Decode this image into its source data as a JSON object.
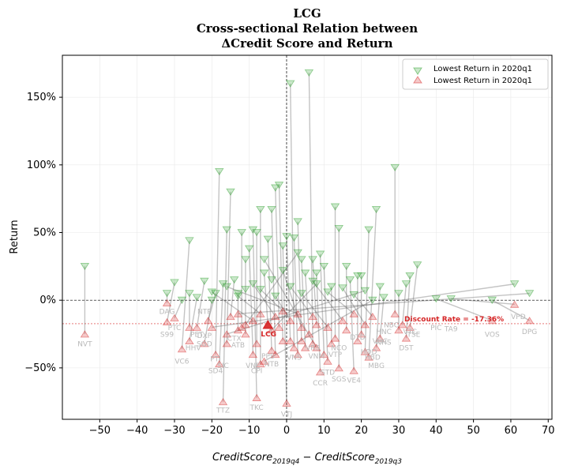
{
  "chart_data": {
    "type": "scatter",
    "title": [
      "LCG",
      "Cross-sectional Relation between",
      "ΔCredit Score and Return"
    ],
    "xlabel": "CreditScore",
    "xlabel_parts": {
      "a": "CreditScore",
      "a_sub": "2019q4",
      "minus": " − ",
      "b": "CreditScore",
      "b_sub": "2019q3"
    },
    "ylabel": "Return",
    "xlim": [
      -60,
      71
    ],
    "ylim": [
      -0.88,
      1.81
    ],
    "xticks": [
      -50,
      -40,
      -30,
      -20,
      -10,
      0,
      10,
      20,
      30,
      40,
      50,
      60,
      70
    ],
    "xtick_labels": [
      "−50",
      "−40",
      "−30",
      "−20",
      "−10",
      "0",
      "10",
      "20",
      "30",
      "40",
      "50",
      "60",
      "70"
    ],
    "yticks": [
      -0.5,
      0,
      0.5,
      1.0,
      1.5
    ],
    "ytick_labels": [
      "−50%",
      "0%",
      "50%",
      "100%",
      "150%"
    ],
    "grid": true,
    "legend": {
      "placement": "top-right",
      "entries": [
        "Lowest Return in 2020q1",
        "Lowest Return in 2020q1"
      ]
    },
    "reference_lines": {
      "y_zero": 0,
      "x_zero": 0,
      "discount_rate": -0.1736
    },
    "discount_label": "Discount Rate = -17.36%",
    "highlight": {
      "name": "LCG",
      "x": -5,
      "y": -0.18,
      "color": "#d62728"
    },
    "colors": {
      "high": "#2ca02c",
      "low": "#d62728",
      "line": "#555555",
      "label": "#b9b9b9"
    },
    "series": [
      {
        "name": "high",
        "points": [
          [
            -54,
            0.25
          ],
          [
            -32,
            0.05
          ],
          [
            -30,
            0.13
          ],
          [
            -28,
            0.0
          ],
          [
            -26,
            0.44
          ],
          [
            -26,
            0.05
          ],
          [
            -24,
            0.02
          ],
          [
            -22,
            0.14
          ],
          [
            -20,
            0.0
          ],
          [
            -19,
            0.05
          ],
          [
            -18,
            0.95
          ],
          [
            -17,
            0.12
          ],
          [
            -16,
            0.52
          ],
          [
            -15,
            0.8
          ],
          [
            -14,
            0.15
          ],
          [
            -13,
            0.05
          ],
          [
            -12,
            0.5
          ],
          [
            -11,
            0.3
          ],
          [
            -10,
            0.38
          ],
          [
            -9,
            0.52
          ],
          [
            -8,
            0.5
          ],
          [
            -7,
            0.67
          ],
          [
            -6,
            0.2
          ],
          [
            -5,
            0.45
          ],
          [
            -4,
            0.67
          ],
          [
            -3,
            0.83
          ],
          [
            -2,
            0.85
          ],
          [
            -1,
            0.4
          ],
          [
            0,
            0.47
          ],
          [
            1,
            1.6
          ],
          [
            2,
            0.46
          ],
          [
            3,
            0.58
          ],
          [
            4,
            0.3
          ],
          [
            5,
            0.2
          ],
          [
            6,
            1.68
          ],
          [
            7,
            0.3
          ],
          [
            8,
            0.2
          ],
          [
            9,
            0.34
          ],
          [
            10,
            0.25
          ],
          [
            12,
            0.1
          ],
          [
            13,
            0.69
          ],
          [
            14,
            0.53
          ],
          [
            16,
            0.25
          ],
          [
            17,
            0.15
          ],
          [
            19,
            0.18
          ],
          [
            20,
            0.18
          ],
          [
            22,
            0.52
          ],
          [
            24,
            0.67
          ],
          [
            25,
            0.1
          ],
          [
            26,
            0.02
          ],
          [
            29,
            0.98
          ],
          [
            30,
            0.05
          ],
          [
            32,
            0.12
          ],
          [
            33,
            0.18
          ],
          [
            35,
            0.26
          ],
          [
            40,
            0.01
          ],
          [
            44,
            0.01
          ],
          [
            55,
            0.0
          ],
          [
            61,
            0.12
          ],
          [
            65,
            0.05
          ],
          [
            -20,
            0.06
          ],
          [
            -13,
            0.03
          ],
          [
            -9,
            0.12
          ],
          [
            -7,
            0.08
          ],
          [
            -3,
            0.03
          ],
          [
            -1,
            0.22
          ],
          [
            1,
            0.1
          ],
          [
            4,
            0.05
          ],
          [
            7,
            0.14
          ],
          [
            11,
            0.06
          ],
          [
            15,
            0.09
          ],
          [
            18,
            0.04
          ],
          [
            21,
            0.07
          ],
          [
            23,
            0.0
          ],
          [
            -16,
            0.1
          ],
          [
            -6,
            0.3
          ],
          [
            3,
            0.35
          ],
          [
            8,
            0.12
          ],
          [
            -11,
            0.08
          ],
          [
            -4,
            0.15
          ]
        ]
      },
      {
        "name": "low",
        "points": [
          [
            -54,
            -0.25
          ],
          [
            -32,
            -0.02
          ],
          [
            -32,
            -0.16
          ],
          [
            -30,
            -0.13
          ],
          [
            -28,
            -0.36
          ],
          [
            -26,
            -0.2
          ],
          [
            -26,
            -0.3
          ],
          [
            -24,
            -0.2
          ],
          [
            -22,
            -0.32
          ],
          [
            -21,
            -0.15
          ],
          [
            -19,
            -0.4
          ],
          [
            -18,
            -0.47
          ],
          [
            -17,
            -0.75
          ],
          [
            -16,
            -0.32
          ],
          [
            -15,
            -0.12
          ],
          [
            -13,
            -0.22
          ],
          [
            -12,
            -0.2
          ],
          [
            -11,
            -0.25
          ],
          [
            -9,
            -0.4
          ],
          [
            -8,
            -0.72
          ],
          [
            -8,
            -0.32
          ],
          [
            -7,
            -0.47
          ],
          [
            -5,
            -0.18
          ],
          [
            -4,
            -0.37
          ],
          [
            -3,
            -0.4
          ],
          [
            -2,
            -0.2
          ],
          [
            -1,
            -0.3
          ],
          [
            0,
            -0.76
          ],
          [
            1,
            -0.3
          ],
          [
            2,
            -0.35
          ],
          [
            3,
            -0.4
          ],
          [
            4,
            -0.3
          ],
          [
            5,
            -0.35
          ],
          [
            6,
            -0.25
          ],
          [
            7,
            -0.32
          ],
          [
            8,
            -0.18
          ],
          [
            9,
            -0.53
          ],
          [
            10,
            -0.4
          ],
          [
            11,
            -0.45
          ],
          [
            12,
            -0.32
          ],
          [
            13,
            -0.28
          ],
          [
            14,
            -0.5
          ],
          [
            16,
            -0.22
          ],
          [
            18,
            -0.52
          ],
          [
            19,
            -0.3
          ],
          [
            20,
            -0.25
          ],
          [
            21,
            -0.38
          ],
          [
            22,
            -0.42
          ],
          [
            24,
            -0.35
          ],
          [
            25,
            -0.28
          ],
          [
            29,
            -0.1
          ],
          [
            30,
            -0.22
          ],
          [
            31,
            -0.18
          ],
          [
            32,
            -0.28
          ],
          [
            33,
            -0.2
          ],
          [
            55,
            -0.15
          ],
          [
            61,
            -0.03
          ],
          [
            65,
            -0.15
          ],
          [
            -20,
            -0.2
          ],
          [
            -13,
            -0.1
          ],
          [
            -9,
            -0.15
          ],
          [
            -7,
            -0.1
          ],
          [
            -3,
            -0.12
          ],
          [
            -1,
            -0.08
          ],
          [
            1,
            -0.15
          ],
          [
            4,
            -0.2
          ],
          [
            7,
            -0.12
          ],
          [
            11,
            -0.2
          ],
          [
            15,
            -0.15
          ],
          [
            18,
            -0.1
          ],
          [
            21,
            -0.18
          ],
          [
            23,
            -0.12
          ],
          [
            -16,
            -0.25
          ],
          [
            -6,
            -0.45
          ],
          [
            3,
            -0.1
          ],
          [
            8,
            -0.35
          ],
          [
            -11,
            -0.18
          ],
          [
            -4,
            -0.22
          ]
        ]
      }
    ],
    "tickers": [
      {
        "t": "NVT",
        "x": -54,
        "y": -0.34
      },
      {
        "t": "DAG",
        "x": -32,
        "y": -0.1
      },
      {
        "t": "S99",
        "x": -32,
        "y": -0.27
      },
      {
        "t": "PTC",
        "x": -30,
        "y": -0.22
      },
      {
        "t": "VC6",
        "x": -28,
        "y": -0.47
      },
      {
        "t": "HHV",
        "x": -25,
        "y": -0.37
      },
      {
        "t": "SGD",
        "x": -22,
        "y": -0.34
      },
      {
        "t": "PET",
        "x": -24,
        "y": -0.27
      },
      {
        "t": "NTP",
        "x": -22,
        "y": -0.1
      },
      {
        "t": "DXP",
        "x": -22,
        "y": -0.28
      },
      {
        "t": "PTI",
        "x": -19,
        "y": -0.45
      },
      {
        "t": "SD4",
        "x": -19,
        "y": -0.54
      },
      {
        "t": "SIC",
        "x": -17,
        "y": -0.5
      },
      {
        "t": "TTZ",
        "x": -17,
        "y": -0.83
      },
      {
        "t": "ATB",
        "x": -13,
        "y": -0.35
      },
      {
        "t": "CTX",
        "x": -14,
        "y": -0.3
      },
      {
        "t": "TKC",
        "x": -8,
        "y": -0.81
      },
      {
        "t": "VNE",
        "x": -9,
        "y": -0.5
      },
      {
        "t": "CPI",
        "x": -8,
        "y": -0.54
      },
      {
        "t": "NTB",
        "x": -4,
        "y": -0.49
      },
      {
        "t": "PPS",
        "x": -5,
        "y": -0.43
      },
      {
        "t": "VTJ",
        "x": 0,
        "y": -0.86
      },
      {
        "t": "CCR",
        "x": 9,
        "y": -0.63
      },
      {
        "t": "SGS",
        "x": 14,
        "y": -0.6
      },
      {
        "t": "VE4",
        "x": 18,
        "y": -0.61
      },
      {
        "t": "MBG",
        "x": 24,
        "y": -0.5
      },
      {
        "t": "STD",
        "x": 11,
        "y": -0.55
      },
      {
        "t": "VNM",
        "x": 8,
        "y": -0.43
      },
      {
        "t": "DTD",
        "x": 19,
        "y": -0.29
      },
      {
        "t": "HBD",
        "x": 23,
        "y": -0.44
      },
      {
        "t": "VRS",
        "x": 7,
        "y": -0.37
      },
      {
        "t": "NCO",
        "x": 14,
        "y": -0.37
      },
      {
        "t": "VHC",
        "x": 25,
        "y": -0.32
      },
      {
        "t": "DST",
        "x": 32,
        "y": -0.37
      },
      {
        "t": "PIC",
        "x": 40,
        "y": -0.22
      },
      {
        "t": "TA9",
        "x": 44,
        "y": -0.23
      },
      {
        "t": "VOS",
        "x": 55,
        "y": -0.27
      },
      {
        "t": "DPG",
        "x": 65,
        "y": -0.25
      },
      {
        "t": "VNS",
        "x": 2,
        "y": -0.44
      },
      {
        "t": "TSE",
        "x": 34,
        "y": -0.27
      },
      {
        "t": "NBC",
        "x": 28,
        "y": -0.2
      },
      {
        "t": "VTC",
        "x": 33,
        "y": -0.25
      },
      {
        "t": "HNC",
        "x": 26,
        "y": -0.25
      },
      {
        "t": "VTP",
        "x": 13,
        "y": -0.42
      },
      {
        "t": "VPD",
        "x": 62,
        "y": -0.14
      },
      {
        "t": "NHS",
        "x": 26,
        "y": -0.33
      },
      {
        "t": "HDD",
        "x": 22,
        "y": -0.4
      }
    ]
  }
}
